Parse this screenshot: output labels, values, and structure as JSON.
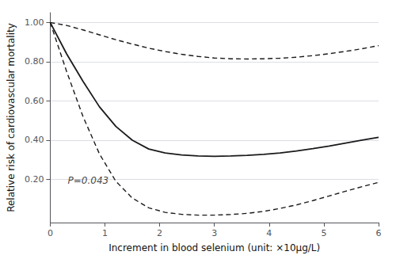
{
  "chart_data": {
    "type": "line",
    "xlabel": "Increment in blood selenium (unit: ×10μg/L)",
    "ylabel": "Relative risk of cardiovascular mortality",
    "xlim": [
      0,
      6
    ],
    "ylim": [
      -0.02,
      1.05
    ],
    "xticks": [
      0,
      1,
      2,
      3,
      4,
      5,
      6
    ],
    "yticks": [
      {
        "value": 0.2,
        "label": "0.20"
      },
      {
        "value": 0.4,
        "label": "0.40"
      },
      {
        "value": 0.6,
        "label": "0.60"
      },
      {
        "value": 0.8,
        "label": "0.80"
      },
      {
        "value": 1.0,
        "label": "1.00"
      }
    ],
    "grid": "y",
    "x": [
      0.0,
      0.3,
      0.6,
      0.9,
      1.2,
      1.5,
      1.8,
      2.1,
      2.4,
      2.7,
      3.0,
      3.3,
      3.6,
      3.9,
      4.2,
      4.5,
      4.8,
      5.1,
      5.4,
      5.7,
      6.0
    ],
    "series": [
      {
        "color": "#1a1a1a",
        "line_style": "solid",
        "values": [
          1.0,
          0.84,
          0.7,
          0.57,
          0.47,
          0.4,
          0.355,
          0.335,
          0.325,
          0.32,
          0.318,
          0.32,
          0.323,
          0.328,
          0.335,
          0.345,
          0.357,
          0.37,
          0.385,
          0.4,
          0.415
        ]
      },
      {
        "color": "#1a1a1a",
        "line_style": "dashed",
        "values": [
          1.0,
          0.985,
          0.962,
          0.937,
          0.912,
          0.89,
          0.869,
          0.852,
          0.838,
          0.827,
          0.819,
          0.815,
          0.814,
          0.815,
          0.818,
          0.823,
          0.831,
          0.841,
          0.853,
          0.866,
          0.882
        ]
      },
      {
        "color": "#1a1a1a",
        "line_style": "dashed",
        "values": [
          1.0,
          0.75,
          0.52,
          0.33,
          0.19,
          0.105,
          0.055,
          0.032,
          0.022,
          0.018,
          0.018,
          0.021,
          0.027,
          0.037,
          0.052,
          0.07,
          0.092,
          0.116,
          0.14,
          0.163,
          0.185
        ]
      }
    ],
    "annotations": [
      {
        "text": "P=0.043",
        "x": 0.32,
        "y": 0.195
      }
    ]
  }
}
